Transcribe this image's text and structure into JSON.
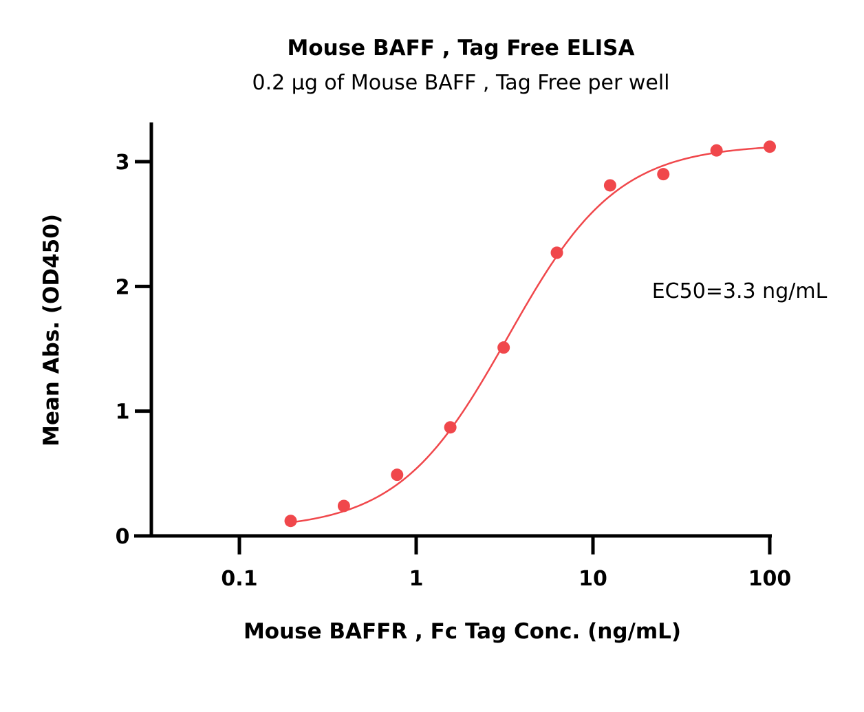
{
  "chart_data": {
    "type": "scatter",
    "title": "Mouse BAFF , Tag Free ELISA",
    "subtitle": "0.2 µg of Mouse BAFF , Tag Free per well",
    "xlabel": "Mouse BAFFR , Fc Tag  Conc. (ng/mL)",
    "ylabel": "Mean Abs. (OD450)",
    "x_scale": "log",
    "xlim": [
      0.03,
      100
    ],
    "ylim": [
      0,
      3.3
    ],
    "x_ticks": [
      0.1,
      1,
      10,
      100
    ],
    "x_tick_labels": [
      "0.1",
      "1",
      "10",
      "100"
    ],
    "y_ticks": [
      0,
      1,
      2,
      3
    ],
    "y_tick_labels": [
      "0",
      "1",
      "2",
      "3"
    ],
    "grid": false,
    "series": [
      {
        "color": "#f0474b",
        "x": [
          0.195,
          0.39,
          0.78,
          1.56,
          3.125,
          6.25,
          12.5,
          25,
          50,
          100
        ],
        "y": [
          0.12,
          0.24,
          0.49,
          0.87,
          1.51,
          2.27,
          2.81,
          2.9,
          3.09,
          3.12
        ]
      }
    ],
    "fit_curve": {
      "model": "4PL",
      "bottom": 0.05,
      "top": 3.14,
      "ec50": 3.3,
      "hill": 1.4,
      "color": "#f0474b"
    },
    "annotations": [
      {
        "text": "EC50=3.3 ng/mL"
      }
    ]
  }
}
